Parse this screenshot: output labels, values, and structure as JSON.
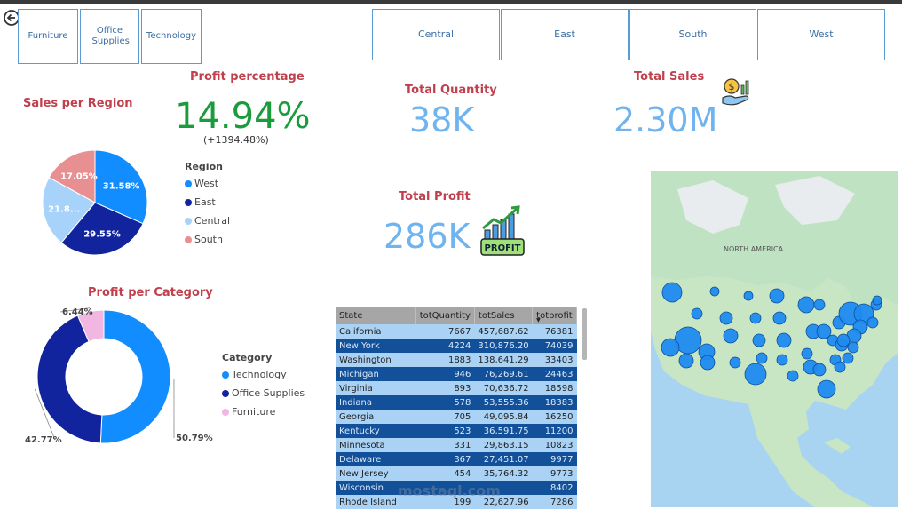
{
  "category_slicers": [
    {
      "label": "Furniture"
    },
    {
      "label": "Office Supplies"
    },
    {
      "label": "Technology"
    }
  ],
  "region_slicers": [
    {
      "label": "Central"
    },
    {
      "label": "East"
    },
    {
      "label": "South"
    },
    {
      "label": "West"
    }
  ],
  "profit_percentage": {
    "title": "Profit percentage",
    "value": "14.94%",
    "change": "(+1394.48%)",
    "color": "#1a9c3c"
  },
  "total_quantity": {
    "title": "Total Quantity",
    "value": "38K"
  },
  "total_sales": {
    "title": "Total Sales",
    "value": "2.30M"
  },
  "total_profit": {
    "title": "Total Profit",
    "value": "286K",
    "badge": "PROFIT"
  },
  "sales_per_region": {
    "title": "Sales per Region",
    "legend_title": "Region"
  },
  "profit_per_category": {
    "title": "Profit per Category",
    "legend_title": "Category"
  },
  "chart_data": [
    {
      "type": "pie",
      "title": "Sales per Region",
      "legend_title": "Region",
      "legend_position": "right",
      "categories": [
        "West",
        "East",
        "Central",
        "South"
      ],
      "values": [
        31.58,
        29.55,
        21.82,
        17.05
      ],
      "labels": [
        "31.58%",
        "29.55%",
        "21.8...",
        "17.05%"
      ],
      "colors": [
        "#118dff",
        "#12239e",
        "#a7d3fb",
        "#e88f92"
      ]
    },
    {
      "type": "pie",
      "subtype": "donut",
      "title": "Profit per Category",
      "legend_title": "Category",
      "legend_position": "right",
      "categories": [
        "Technology",
        "Office Supplies",
        "Furniture"
      ],
      "values": [
        50.79,
        42.77,
        6.44
      ],
      "labels": [
        "50.79%",
        "42.77%",
        "6.44%"
      ],
      "colors": [
        "#118dff",
        "#12239e",
        "#f2b6e2"
      ]
    }
  ],
  "state_table": {
    "columns": [
      "State",
      "totQuantity",
      "totSales",
      "totprofit"
    ],
    "rows": [
      [
        "California",
        "7667",
        "457,687.62",
        "76381"
      ],
      [
        "New York",
        "4224",
        "310,876.20",
        "74039"
      ],
      [
        "Washington",
        "1883",
        "138,641.29",
        "33403"
      ],
      [
        "Michigan",
        "946",
        "76,269.61",
        "24463"
      ],
      [
        "Virginia",
        "893",
        "70,636.72",
        "18598"
      ],
      [
        "Indiana",
        "578",
        "53,555.36",
        "18383"
      ],
      [
        "Georgia",
        "705",
        "49,095.84",
        "16250"
      ],
      [
        "Kentucky",
        "523",
        "36,591.75",
        "11200"
      ],
      [
        "Minnesota",
        "331",
        "29,863.15",
        "10823"
      ],
      [
        "Delaware",
        "367",
        "27,451.07",
        "9977"
      ],
      [
        "New Jersey",
        "454",
        "35,764.32",
        "9773"
      ],
      [
        "Wisconsin",
        "",
        "",
        "8402"
      ],
      [
        "Rhode Island",
        "199",
        "22,627.96",
        "7286"
      ]
    ]
  },
  "map": {
    "label": "NORTH AMERICA",
    "bubble_color": "#1f8bf0"
  },
  "watermark": "mostaql.com",
  "colors": {
    "title_red": "#c0404d",
    "kpi_blue": "#6fb4ef",
    "slicer_border": "#5b9bd5"
  }
}
